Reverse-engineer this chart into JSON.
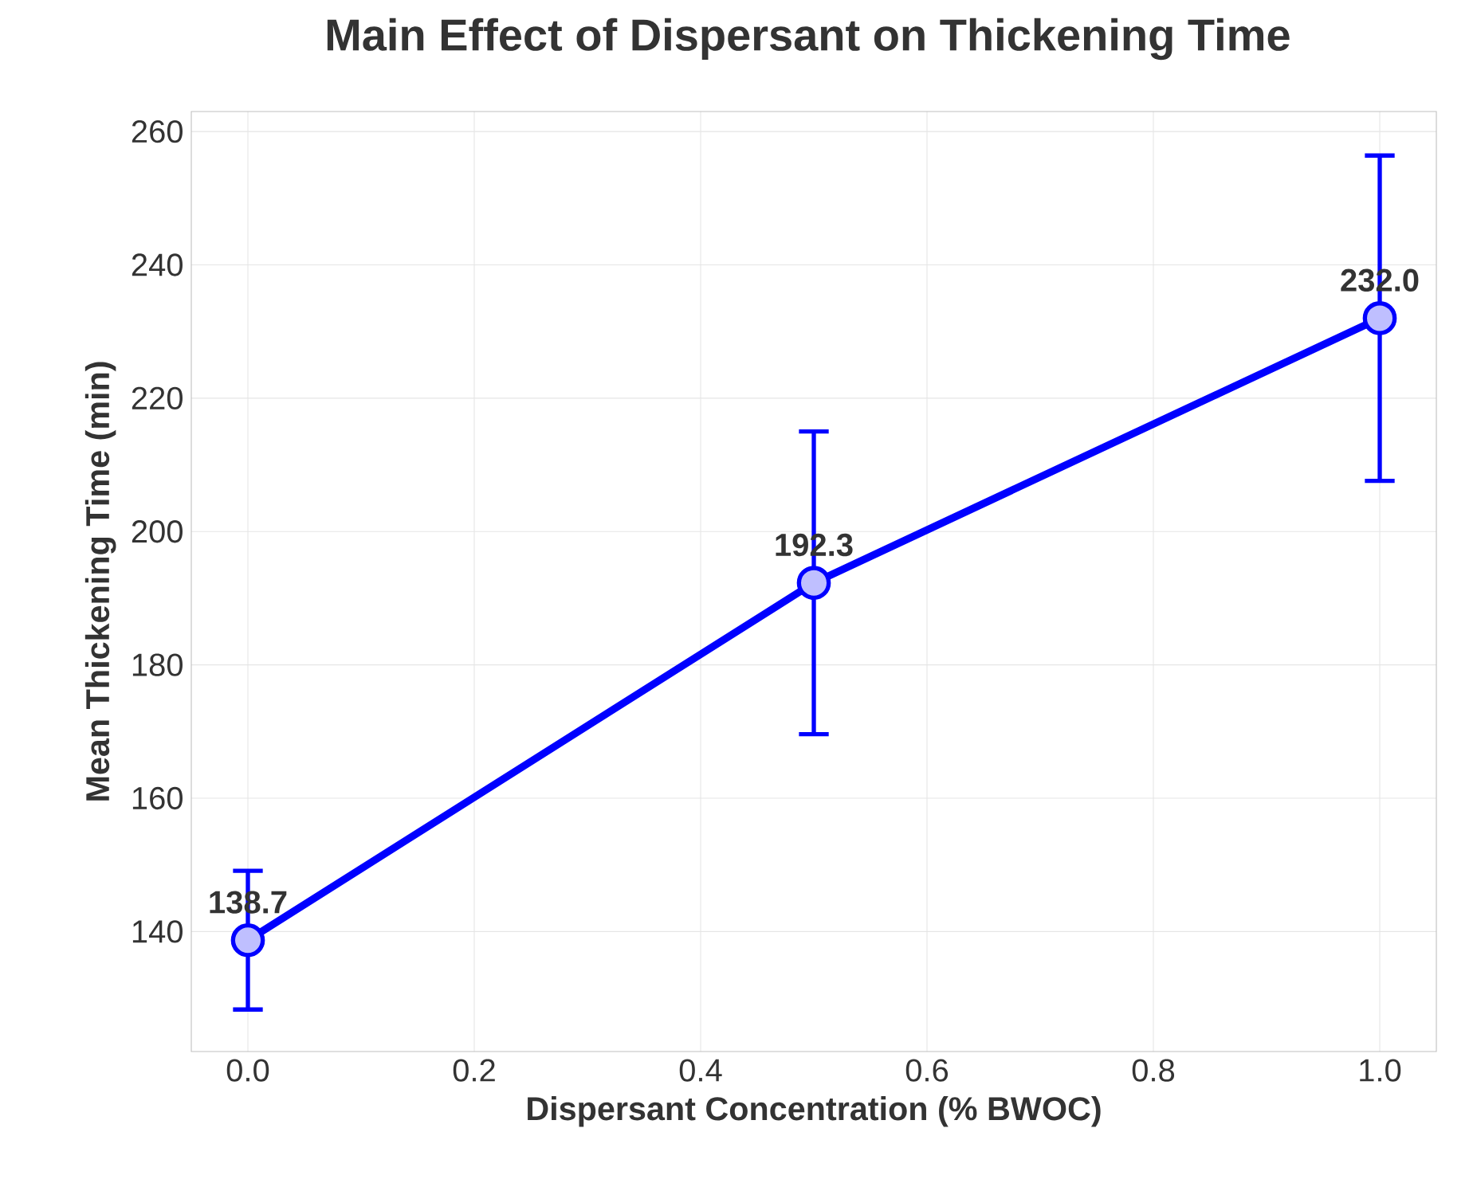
{
  "chart_data": {
    "type": "line",
    "title": "Main Effect of Dispersant on Thickening Time",
    "xlabel": "Dispersant Concentration (% BWOC)",
    "ylabel": "Mean Thickening Time (min)",
    "x": [
      0.0,
      0.5,
      1.0
    ],
    "series": [
      {
        "color": "#0000ff",
        "values": [
          138.7,
          192.3,
          232.0
        ],
        "errors": [
          10.4,
          22.7,
          24.4
        ],
        "value_labels": [
          "138.7",
          "192.3",
          "232.0"
        ]
      }
    ],
    "xlim": [
      -0.05,
      1.05
    ],
    "xticks": [
      {
        "value": 0.0,
        "label": "0.0"
      },
      {
        "value": 0.2,
        "label": "0.2"
      },
      {
        "value": 0.4,
        "label": "0.4"
      },
      {
        "value": 0.6,
        "label": "0.6"
      },
      {
        "value": 0.8,
        "label": "0.8"
      },
      {
        "value": 1.0,
        "label": "1.0"
      }
    ],
    "ylim": [
      122,
      263
    ],
    "yticks": [
      140,
      160,
      180,
      200,
      220,
      240,
      260
    ],
    "grid": true,
    "marker": "circle",
    "line_style": "solid"
  }
}
